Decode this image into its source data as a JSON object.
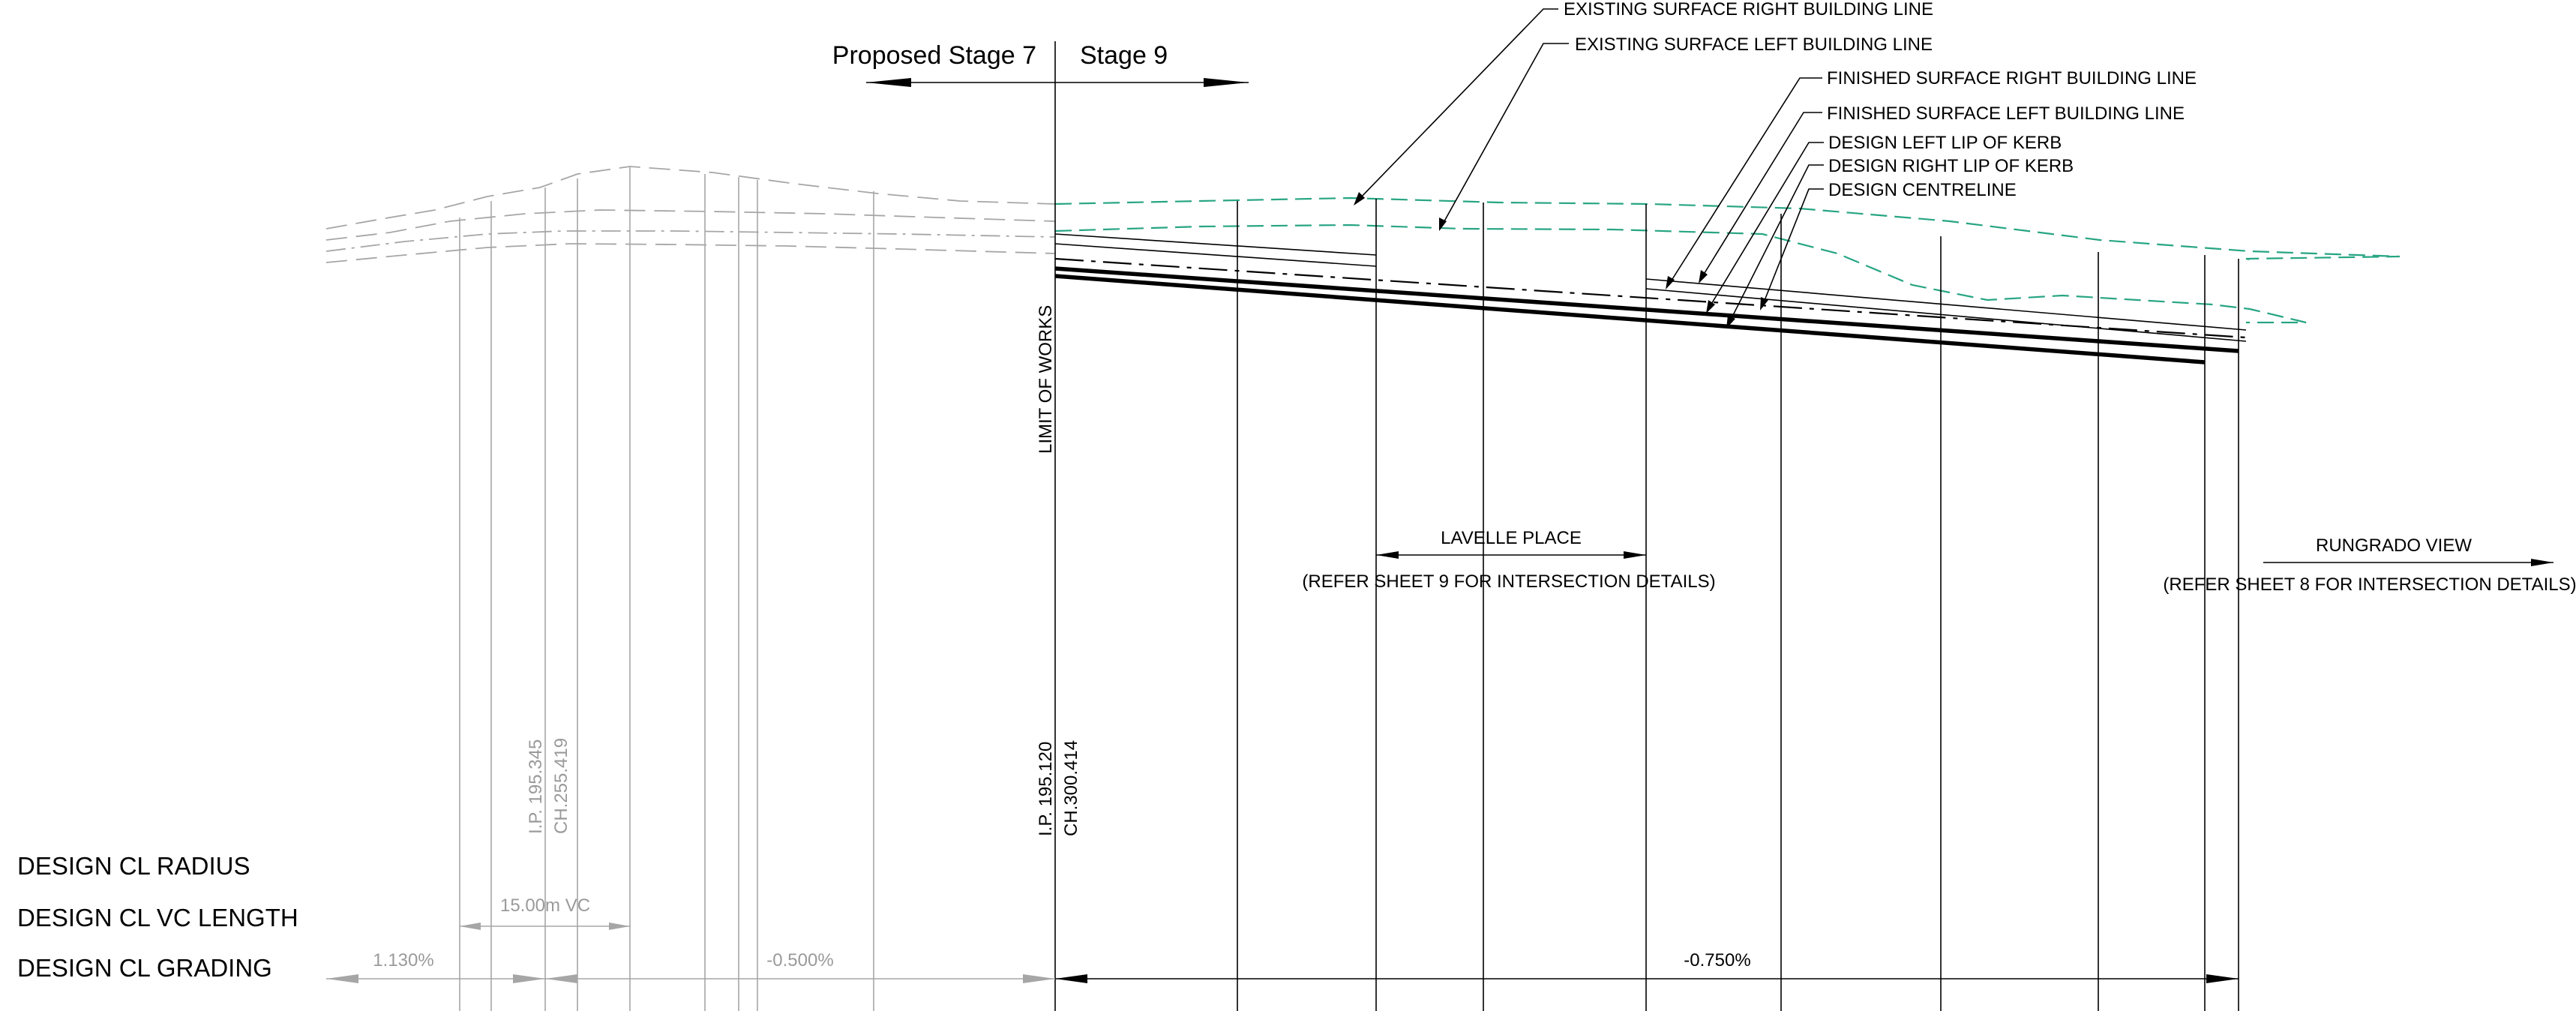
{
  "stage_labels": {
    "left": "Proposed Stage 7",
    "right": "Stage 9"
  },
  "callouts": [
    "EXISTING SURFACE RIGHT BUILDING LINE",
    "EXISTING SURFACE LEFT BUILDING LINE",
    "FINISHED SURFACE RIGHT BUILDING LINE",
    "FINISHED SURFACE LEFT BUILDING LINE",
    "DESIGN LEFT LIP OF KERB",
    "DESIGN RIGHT LIP OF KERB",
    "DESIGN CENTRELINE"
  ],
  "limit_of_works": "LIMIT OF WORKS",
  "intersections": {
    "lavelle": {
      "name": "LAVELLE PLACE",
      "note": "(REFER SHEET 9 FOR INTERSECTION DETAILS)"
    },
    "rungrado": {
      "name": "RUNGRADO VIEW",
      "note": "(REFER SHEET 8 FOR INTERSECTION DETAILS)"
    }
  },
  "ip_labels": {
    "grey_ip": "I.P. 195.345",
    "grey_ch": "CH.255.419",
    "main_ip": "I.P. 195.120",
    "main_ch": "CH.300.414"
  },
  "rows": {
    "radius": "DESIGN CL RADIUS",
    "vc_length": "DESIGN CL VC LENGTH",
    "grading": "DESIGN CL GRADING"
  },
  "vc_length_value": "15.00m VC",
  "gradings": [
    "1.130%",
    "-0.500%",
    "-0.750%"
  ],
  "colors": {
    "existing_surface": "#27a583",
    "linework": "#000000",
    "out_of_scope": "#a6a6a6"
  }
}
